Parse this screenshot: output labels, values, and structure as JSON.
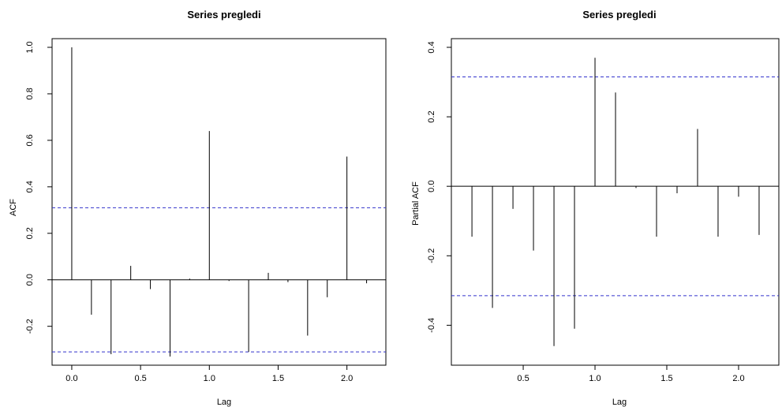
{
  "chart_data": [
    {
      "type": "bar",
      "title": "Series  pregledi",
      "xlabel": "Lag",
      "ylabel": "ACF",
      "xlim": [
        -0.08,
        2.22
      ],
      "ylim": [
        -0.33,
        1.0
      ],
      "xticks": [
        "0.0",
        "0.5",
        "1.0",
        "1.5",
        "2.0"
      ],
      "xtick_values": [
        0,
        0.5,
        1.0,
        1.5,
        2.0
      ],
      "yticks": [
        "-0.2",
        "0.0",
        "0.2",
        "0.4",
        "0.6",
        "0.8",
        "1.0"
      ],
      "ytick_values": [
        -0.2,
        0,
        0.2,
        0.4,
        0.6,
        0.8,
        1.0
      ],
      "x": [
        0,
        0.1429,
        0.2857,
        0.4286,
        0.5714,
        0.7143,
        0.8571,
        1.0,
        1.1429,
        1.2857,
        1.4286,
        1.5714,
        1.7143,
        1.8571,
        2.0,
        2.1429
      ],
      "values": [
        1.0,
        -0.15,
        -0.32,
        0.06,
        -0.04,
        -0.33,
        0.005,
        0.64,
        -0.005,
        -0.31,
        0.03,
        -0.01,
        -0.24,
        -0.075,
        0.53,
        -0.015
      ],
      "confidence_bounds": [
        0.31,
        -0.31
      ],
      "zero_line": true
    },
    {
      "type": "bar",
      "title": "Series  pregledi",
      "xlabel": "Lag",
      "ylabel": "Partial ACF",
      "xlim": [
        0.06,
        2.22
      ],
      "ylim": [
        -0.49,
        0.4
      ],
      "xticks": [
        "0.5",
        "1.0",
        "1.5",
        "2.0"
      ],
      "xtick_values": [
        0.5,
        1.0,
        1.5,
        2.0
      ],
      "yticks": [
        "-0.4",
        "-0.2",
        "0.0",
        "0.2",
        "0.4"
      ],
      "ytick_values": [
        -0.4,
        -0.2,
        0,
        0.2,
        0.4
      ],
      "x": [
        0.1429,
        0.2857,
        0.4286,
        0.5714,
        0.7143,
        0.8571,
        1.0,
        1.1429,
        1.2857,
        1.4286,
        1.5714,
        1.7143,
        1.8571,
        2.0,
        2.1429
      ],
      "values": [
        -0.145,
        -0.35,
        -0.065,
        -0.185,
        -0.46,
        -0.41,
        0.37,
        0.27,
        -0.005,
        -0.145,
        -0.02,
        0.165,
        -0.145,
        -0.03,
        -0.14
      ],
      "confidence_bounds": [
        0.315,
        -0.315
      ],
      "zero_line": true
    }
  ],
  "colors": {
    "bars": "#000000",
    "bounds": "#3333cc",
    "axis": "#000000"
  }
}
